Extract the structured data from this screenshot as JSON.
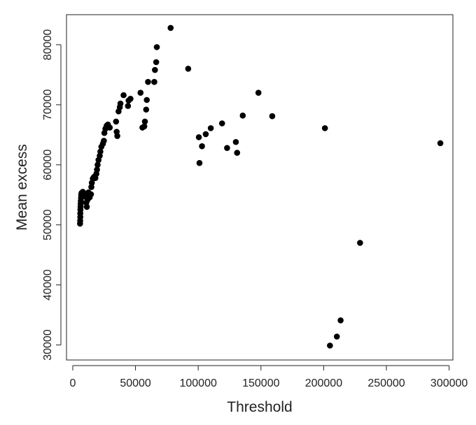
{
  "chart_data": {
    "type": "scatter",
    "title": "",
    "xlabel": "Threshold",
    "ylabel": "Mean excess",
    "xlim": [
      -5000,
      303000
    ],
    "ylim": [
      27500,
      85000
    ],
    "x_ticks": [
      0,
      50000,
      100000,
      150000,
      200000,
      250000,
      300000
    ],
    "x_tick_labels": [
      "0",
      "50000",
      "100000",
      "150000",
      "200000",
      "250000",
      "300000"
    ],
    "y_ticks": [
      30000,
      40000,
      50000,
      60000,
      70000,
      80000
    ],
    "y_tick_labels": [
      "30000",
      "40000",
      "50000",
      "60000",
      "70000",
      "80000"
    ],
    "grid": false,
    "legend": "none",
    "point_color": "#000000",
    "points": [
      [
        5800,
        50200
      ],
      [
        5900,
        50700
      ],
      [
        6000,
        51300
      ],
      [
        6000,
        51900
      ],
      [
        6100,
        52500
      ],
      [
        6200,
        53000
      ],
      [
        6300,
        53500
      ],
      [
        6400,
        54000
      ],
      [
        6600,
        54500
      ],
      [
        6700,
        55000
      ],
      [
        7000,
        55300
      ],
      [
        8000,
        55500
      ],
      [
        9000,
        55200
      ],
      [
        10000,
        54700
      ],
      [
        10800,
        53700
      ],
      [
        11200,
        53000
      ],
      [
        11800,
        54200
      ],
      [
        12500,
        55400
      ],
      [
        13500,
        54600
      ],
      [
        14500,
        55100
      ],
      [
        14800,
        56300
      ],
      [
        15200,
        57000
      ],
      [
        16000,
        57700
      ],
      [
        17000,
        58000
      ],
      [
        18000,
        57800
      ],
      [
        18800,
        58500
      ],
      [
        19300,
        59200
      ],
      [
        19800,
        60000
      ],
      [
        20500,
        60800
      ],
      [
        21500,
        61500
      ],
      [
        22000,
        62200
      ],
      [
        22800,
        63000
      ],
      [
        24000,
        63500
      ],
      [
        24800,
        64000
      ],
      [
        25200,
        65300
      ],
      [
        26000,
        66000
      ],
      [
        27000,
        66500
      ],
      [
        28000,
        66700
      ],
      [
        29500,
        66200
      ],
      [
        34500,
        67200
      ],
      [
        35000,
        65500
      ],
      [
        35500,
        64800
      ],
      [
        36500,
        68900
      ],
      [
        37500,
        69600
      ],
      [
        38000,
        70200
      ],
      [
        40500,
        71600
      ],
      [
        44000,
        69800
      ],
      [
        44500,
        70700
      ],
      [
        46000,
        71000
      ],
      [
        54000,
        72000
      ],
      [
        55500,
        66200
      ],
      [
        57000,
        66400
      ],
      [
        57500,
        67200
      ],
      [
        58500,
        69200
      ],
      [
        59000,
        70800
      ],
      [
        60000,
        73800
      ],
      [
        65000,
        73800
      ],
      [
        65500,
        75800
      ],
      [
        66500,
        77100
      ],
      [
        67000,
        79600
      ],
      [
        78000,
        82800
      ],
      [
        92000,
        76000
      ],
      [
        100500,
        64600
      ],
      [
        101000,
        60300
      ],
      [
        103000,
        63100
      ],
      [
        106000,
        65100
      ],
      [
        110000,
        66100
      ],
      [
        119000,
        66900
      ],
      [
        123000,
        62800
      ],
      [
        130000,
        63800
      ],
      [
        131000,
        62000
      ],
      [
        135500,
        68200
      ],
      [
        148000,
        72000
      ],
      [
        159000,
        68100
      ],
      [
        201000,
        66100
      ],
      [
        205000,
        29900
      ],
      [
        210500,
        31400
      ],
      [
        213500,
        34100
      ],
      [
        229000,
        47000
      ],
      [
        293000,
        63600
      ]
    ]
  }
}
